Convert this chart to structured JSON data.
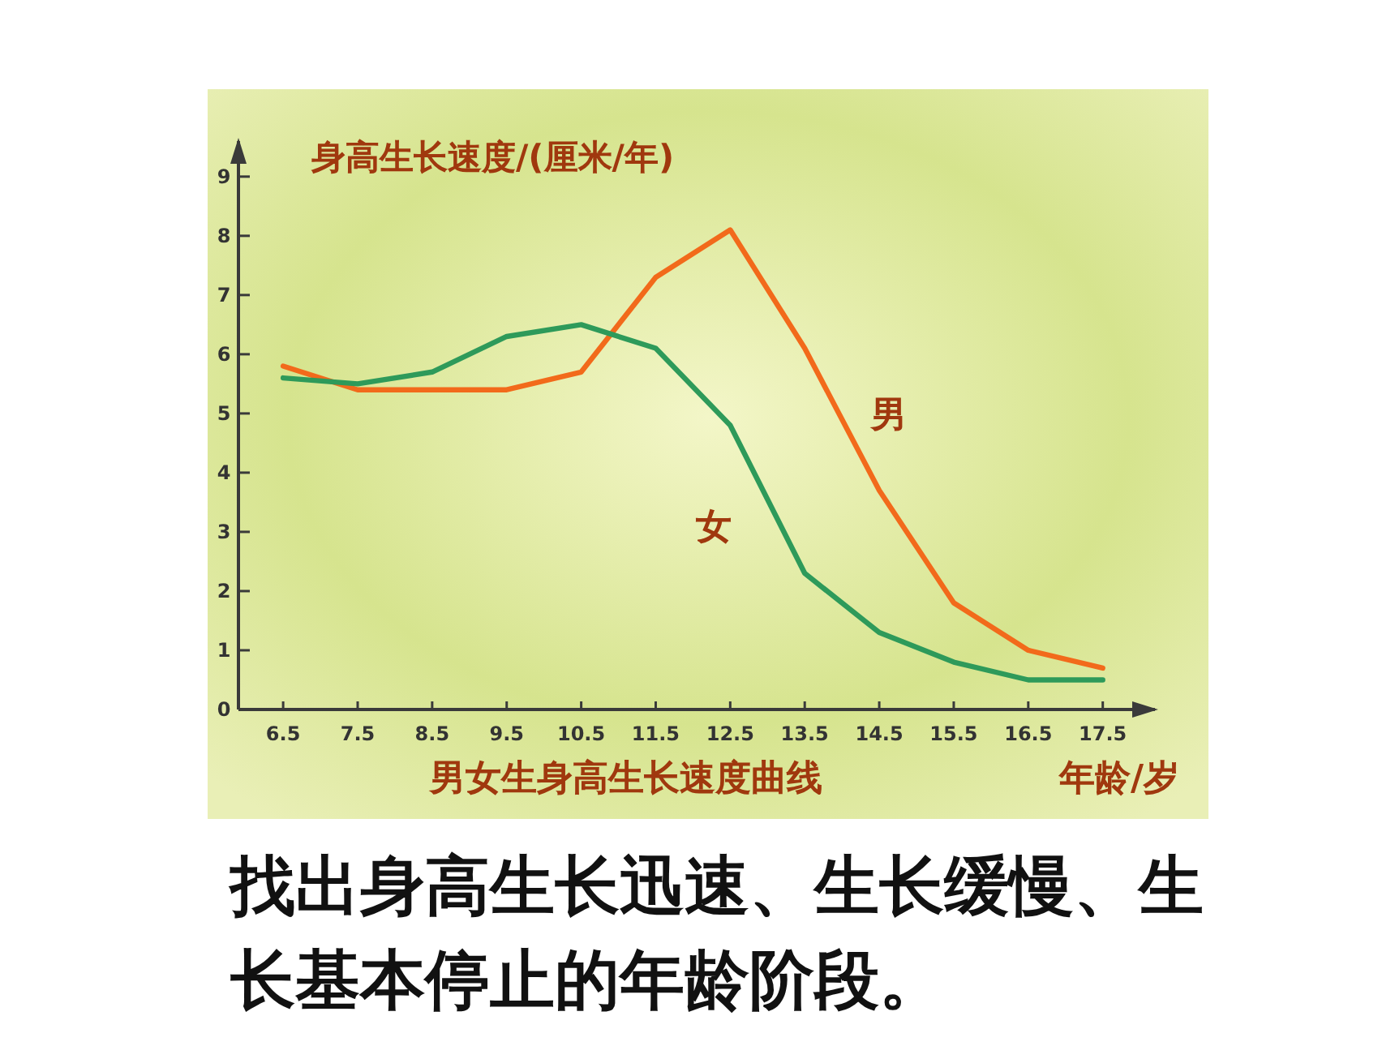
{
  "chart_data": {
    "type": "line",
    "title": "男女生身高生长速度曲线",
    "ylabel": "身高生长速度/(厘米/年)",
    "xlabel": "年龄/岁",
    "x": [
      6.5,
      7.5,
      8.5,
      9.5,
      10.5,
      11.5,
      12.5,
      13.5,
      14.5,
      15.5,
      16.5,
      17.5
    ],
    "series": [
      {
        "name": "男",
        "color": "#f26a1b",
        "values": [
          5.8,
          5.4,
          5.4,
          5.4,
          5.7,
          7.3,
          8.1,
          6.1,
          3.7,
          1.8,
          1.0,
          0.7
        ]
      },
      {
        "name": "女",
        "color": "#2e9a5a",
        "values": [
          5.6,
          5.5,
          5.7,
          6.3,
          6.5,
          6.1,
          4.8,
          2.3,
          1.3,
          0.8,
          0.5,
          0.5
        ]
      }
    ],
    "xlim": [
      5.9,
      18.2
    ],
    "xticks": [
      6.5,
      7.5,
      8.5,
      9.5,
      10.5,
      11.5,
      12.5,
      13.5,
      14.5,
      15.5,
      16.5,
      17.5
    ],
    "ylim": [
      0,
      9.6
    ],
    "yticks": [
      0,
      1,
      2,
      3,
      4,
      5,
      6,
      7,
      8,
      9
    ],
    "grid": false,
    "legend": false,
    "marker": "none",
    "line_style": "solid",
    "annotations": [
      "找出身高生长迅速、生长缓慢、生长基本停止的年龄阶段。"
    ]
  }
}
